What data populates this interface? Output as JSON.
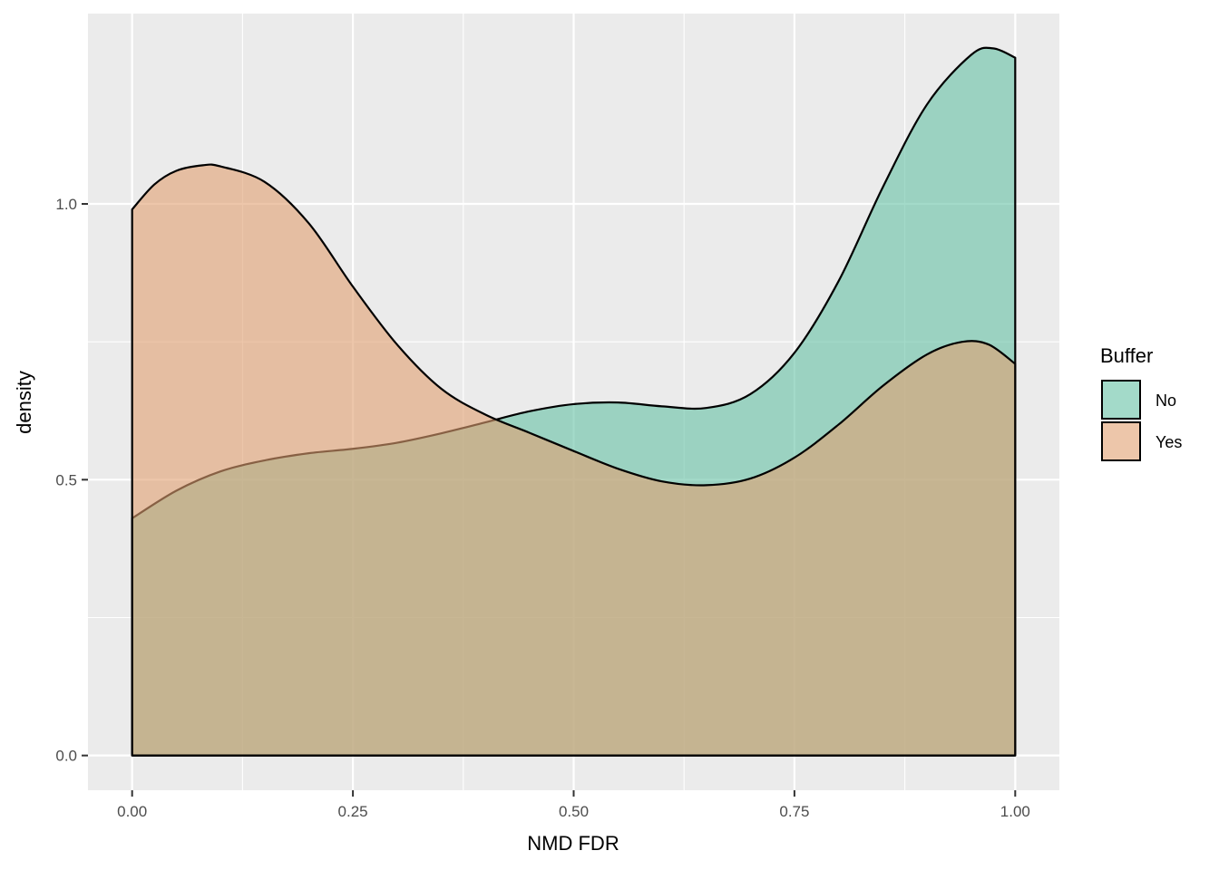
{
  "chart_data": {
    "type": "area",
    "subtype": "density",
    "xlabel": "NMD FDR",
    "ylabel": "density",
    "xlim": [
      -0.05,
      1.05
    ],
    "ylim": [
      -0.063,
      1.345
    ],
    "x_ticks": [
      0.0,
      0.25,
      0.5,
      0.75,
      1.0
    ],
    "x_tick_labels": [
      "0.00",
      "0.25",
      "0.50",
      "0.75",
      "1.00"
    ],
    "y_ticks": [
      0.0,
      0.5,
      1.0
    ],
    "y_tick_labels": [
      "0.0",
      "0.5",
      "1.0"
    ],
    "grid": true,
    "legend": {
      "title": "Buffer",
      "placement": "right"
    },
    "series": [
      {
        "name": "No",
        "color": "#66C2A5",
        "x": [
          0.0,
          0.05,
          0.1,
          0.15,
          0.2,
          0.25,
          0.3,
          0.35,
          0.4,
          0.45,
          0.5,
          0.55,
          0.6,
          0.65,
          0.7,
          0.75,
          0.8,
          0.85,
          0.9,
          0.95,
          0.975,
          1.0
        ],
        "y": [
          0.43,
          0.48,
          0.515,
          0.535,
          0.548,
          0.556,
          0.567,
          0.584,
          0.604,
          0.624,
          0.637,
          0.64,
          0.633,
          0.63,
          0.655,
          0.73,
          0.86,
          1.03,
          1.18,
          1.27,
          1.282,
          1.265
        ]
      },
      {
        "name": "Yes",
        "color": "#E1A071",
        "x": [
          0.0,
          0.025,
          0.05,
          0.08,
          0.1,
          0.15,
          0.2,
          0.25,
          0.3,
          0.35,
          0.4,
          0.45,
          0.5,
          0.55,
          0.6,
          0.65,
          0.7,
          0.75,
          0.8,
          0.85,
          0.9,
          0.94,
          0.97,
          1.0
        ],
        "y": [
          0.99,
          1.035,
          1.06,
          1.07,
          1.068,
          1.04,
          0.965,
          0.85,
          0.745,
          0.665,
          0.618,
          0.585,
          0.552,
          0.52,
          0.497,
          0.49,
          0.502,
          0.54,
          0.6,
          0.67,
          0.727,
          0.75,
          0.745,
          0.71
        ]
      }
    ]
  }
}
